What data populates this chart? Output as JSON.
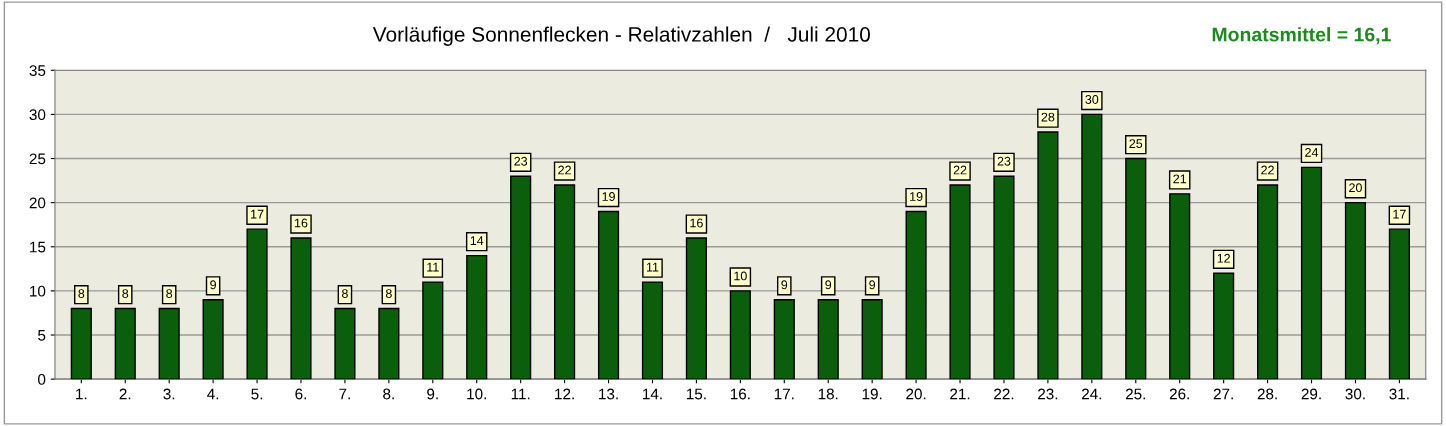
{
  "chart_data": {
    "type": "bar",
    "title": "Vorläufige Sonnenflecken - Relativzahlen  /   Juli 2010",
    "annotations": [
      "Monatsmittel = 16,1"
    ],
    "categories": [
      "1.",
      "2.",
      "3.",
      "4.",
      "5.",
      "6.",
      "7.",
      "8.",
      "9.",
      "10.",
      "11.",
      "12.",
      "13.",
      "14.",
      "15.",
      "16.",
      "17.",
      "18.",
      "19.",
      "20.",
      "21.",
      "22.",
      "23.",
      "24.",
      "25.",
      "26.",
      "27.",
      "28.",
      "29.",
      "30.",
      "31."
    ],
    "values": [
      8,
      8,
      8,
      9,
      17,
      16,
      8,
      8,
      11,
      14,
      23,
      22,
      19,
      11,
      16,
      10,
      9,
      9,
      9,
      19,
      22,
      23,
      28,
      30,
      25,
      21,
      12,
      22,
      24,
      20,
      17
    ],
    "color": "#0b5e0b",
    "ylim": [
      0,
      35
    ],
    "yticks": [
      0,
      5,
      10,
      15,
      20,
      25,
      30,
      35
    ],
    "grid": "y",
    "data_labels": true,
    "legend": false
  }
}
